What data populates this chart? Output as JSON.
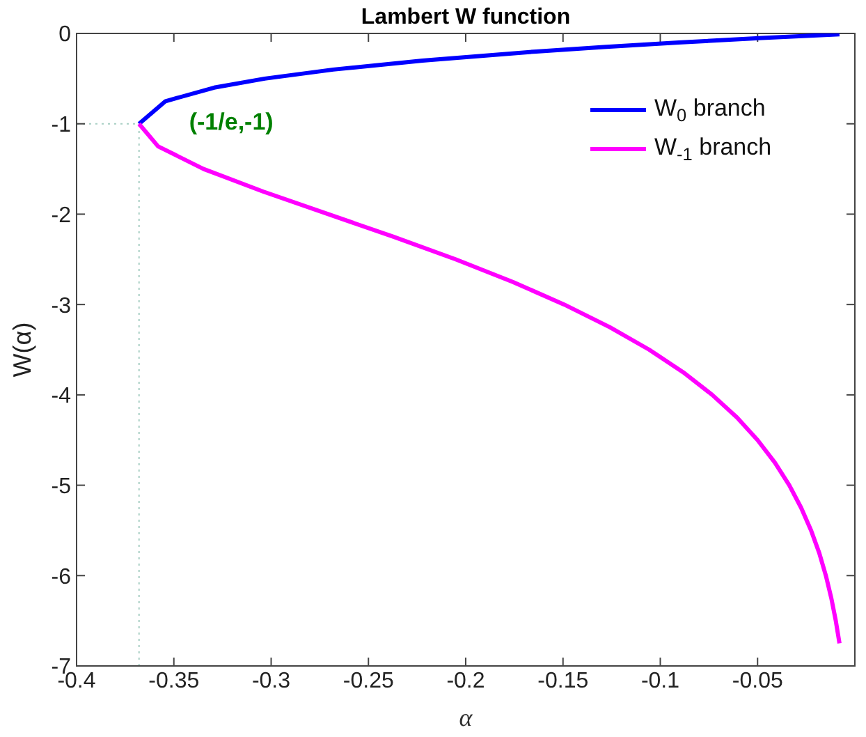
{
  "chart_data": {
    "type": "line",
    "title": "Lambert W function",
    "xlabel": "α",
    "ylabel": "W(α)",
    "series": [
      {
        "name": "W$_{0}$ branch",
        "color": "#0000ff",
        "x": [
          -0.3679,
          -0.3543,
          -0.3293,
          -0.3033,
          -0.2681,
          -0.2222,
          -0.1637,
          -0.1291,
          -0.0905,
          -0.0476,
          -0.0079
        ],
        "values": [
          -1,
          -0.75,
          -0.6,
          -0.5,
          -0.4,
          -0.3,
          -0.2,
          -0.15,
          -0.1,
          -0.05,
          -0.01
        ]
      },
      {
        "name": "W$_{-1}$ branch",
        "color": "#ff00ff",
        "x": [
          -0.3679,
          -0.3581,
          -0.3347,
          -0.3041,
          -0.2707,
          -0.2371,
          -0.2052,
          -0.1758,
          -0.1494,
          -0.126,
          -0.1057,
          -0.0882,
          -0.0733,
          -0.0606,
          -0.05,
          -0.0411,
          -0.0337,
          -0.0276,
          -0.0225,
          -0.0183,
          -0.0149,
          -0.0121,
          -0.0098,
          -0.0079
        ],
        "values": [
          -1,
          -1.25,
          -1.5,
          -1.75,
          -2,
          -2.25,
          -2.5,
          -2.75,
          -3,
          -3.25,
          -3.5,
          -3.75,
          -4,
          -4.25,
          -4.5,
          -4.75,
          -5,
          -5.25,
          -5.5,
          -5.75,
          -6,
          -6.25,
          -6.5,
          -6.75
        ]
      }
    ],
    "xlim": [
      -0.4,
      0
    ],
    "xticks": [
      -0.4,
      -0.35,
      -0.3,
      -0.25,
      -0.2,
      -0.15,
      -0.1,
      -0.05
    ],
    "ylim": [
      -7,
      0
    ],
    "yticks": [
      -7,
      -6,
      -5,
      -4,
      -3,
      -2,
      -1,
      0
    ],
    "ref_lines": [
      {
        "axis": "x",
        "value": -0.3679,
        "color": "#a8cfc4",
        "line_style": "dotted"
      },
      {
        "axis": "y",
        "value": -1,
        "color": "#a8cfc4",
        "line_style": "dotted"
      }
    ],
    "annotations": [
      {
        "text": "(-1/e,-1)",
        "x": -0.3679,
        "y": -1
      }
    ],
    "legend": "top right",
    "grid": false,
    "marker": "none",
    "line_style": "solid"
  }
}
